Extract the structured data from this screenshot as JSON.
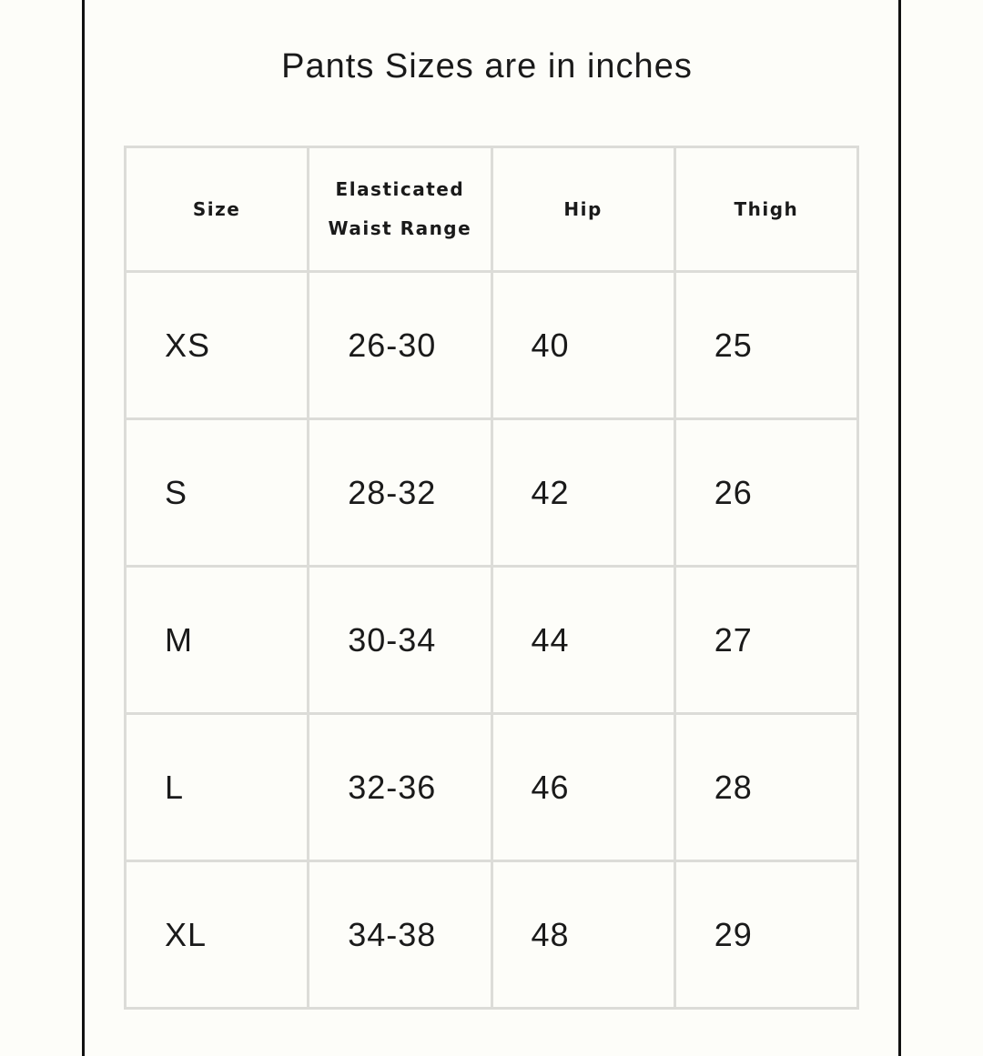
{
  "title": "Pants Sizes are in inches",
  "table": {
    "headers": [
      [
        "Size"
      ],
      [
        "Elasticated",
        "Waist Range"
      ],
      [
        "Hip"
      ],
      [
        "Thigh"
      ]
    ],
    "rows": [
      [
        "XS",
        "26-30",
        "40",
        "25"
      ],
      [
        "S",
        "28-32",
        "42",
        "26"
      ],
      [
        "M",
        "30-34",
        "44",
        "27"
      ],
      [
        "L",
        "32-36",
        "46",
        "28"
      ],
      [
        "XL",
        "34-38",
        "48",
        "29"
      ]
    ]
  }
}
